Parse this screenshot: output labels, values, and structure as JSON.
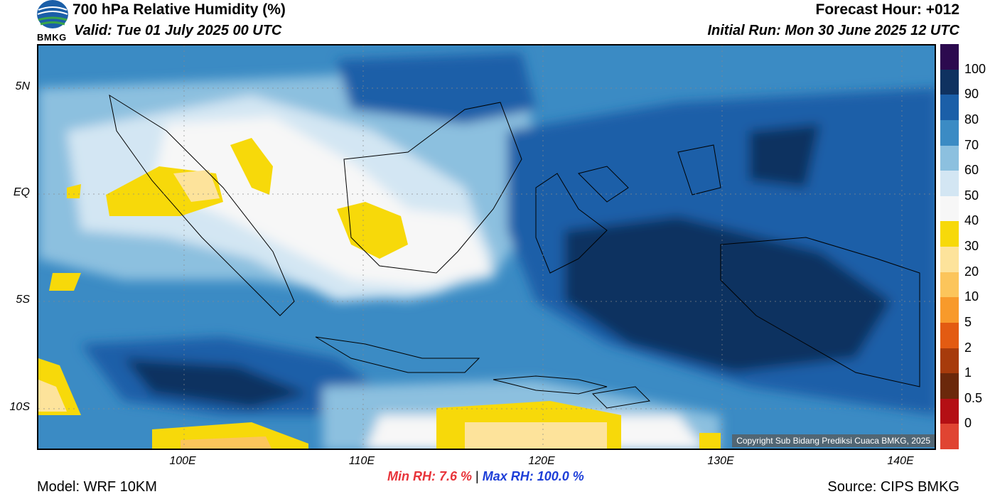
{
  "header": {
    "logo_text": "BMKG",
    "title": "700 hPa Relative Humidity (%)",
    "valid": "Valid: Tue 01 July 2025 00 UTC",
    "forecast_hour": "Forecast Hour: +012",
    "initial_run": "Initial Run: Mon 30 June 2025 12 UTC"
  },
  "map": {
    "y_ticks": [
      "5N",
      "EQ",
      "5S",
      "10S"
    ],
    "x_ticks": [
      "100E",
      "110E",
      "120E",
      "130E",
      "140E"
    ],
    "copyright": "Copyright Sub Bidang Prediksi Cuaca BMKG, 2025"
  },
  "colorbar": {
    "labels": [
      "100",
      "90",
      "80",
      "70",
      "60",
      "50",
      "40",
      "30",
      "20",
      "10",
      "5",
      "2",
      "1",
      "0.5",
      "0"
    ],
    "colors": [
      "#2c0a4f",
      "#0f3260",
      "#1b5fa8",
      "#3b8bc4",
      "#8cc0df",
      "#d3e6f3",
      "#f7f7f7",
      "#f7d90a",
      "#fde39b",
      "#fcc55b",
      "#f89a2b",
      "#e35b12",
      "#a73b0c",
      "#6b280b",
      "#b40f14",
      "#e04432"
    ]
  },
  "stats": {
    "min_rh": "Min RH:   7.6 %",
    "separator": "|",
    "max_rh": "Max RH: 100.0 %"
  },
  "footer": {
    "model": "Model: WRF 10KM",
    "source": "Source: CIPS BMKG"
  }
}
